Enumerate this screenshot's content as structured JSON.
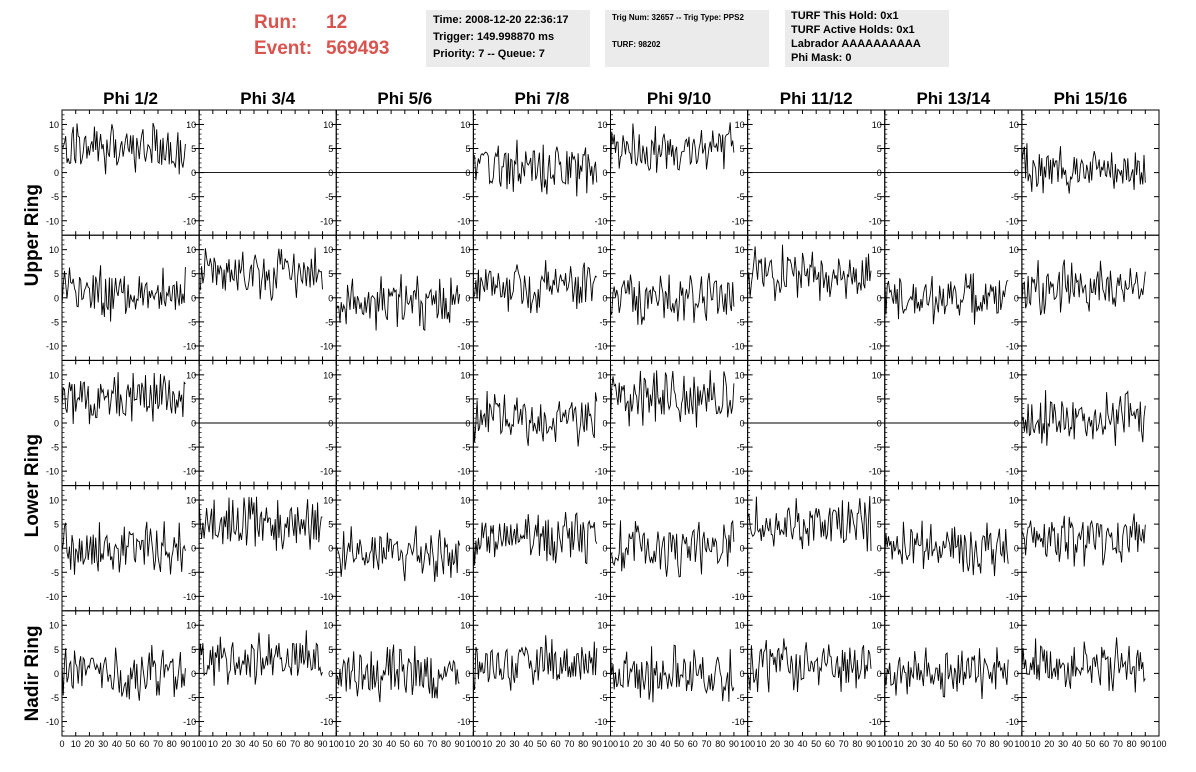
{
  "header": {
    "run_label": "Run:",
    "run_value": "12",
    "event_label": "Event:",
    "event_value": "569493"
  },
  "info_panels": [
    {
      "lines": [
        "Time: 2008-12-20 22:36:17",
        "Trigger: 149.998870 ms",
        "Priority: 7 -- Queue: 7"
      ]
    },
    {
      "lines": [
        "Trig Num: 32657 -- Trig Type: PPS2",
        "TURF: 98202"
      ]
    },
    {
      "lines": [
        "TURF This Hold: 0x1",
        "TURF Active Holds: 0x1",
        "Labrador AAAAAAAAAA",
        "Phi Mask: 0"
      ]
    }
  ],
  "colors": {
    "run_text": "#d9534f",
    "panel_bg": "#ebebeb",
    "trace": "#000000",
    "frame": "#000000"
  },
  "chart_data": {
    "type": "line",
    "grid": false,
    "columns": [
      "Phi 1/2",
      "Phi 3/4",
      "Phi 5/6",
      "Phi 7/8",
      "Phi 9/10",
      "Phi 11/12",
      "Phi 13/14",
      "Phi 15/16"
    ],
    "rows": [
      "Upper Ring",
      "Lower Ring",
      "Nadir Ring"
    ],
    "xlim": [
      0,
      100
    ],
    "ylim": [
      -13,
      13
    ],
    "x_ticks": [
      "0",
      "10",
      "20",
      "30",
      "40",
      "50",
      "60",
      "70",
      "80",
      "90",
      "100"
    ],
    "y_ticks": [
      "10",
      "5",
      "0",
      "-5",
      "-10"
    ],
    "upper_ring_flat_columns": [
      1,
      2,
      5,
      6
    ],
    "lower_ring_flat_columns": [
      1,
      2,
      5,
      6
    ],
    "approx_baselines": [
      [
        5,
        0,
        0,
        1,
        5,
        0,
        0,
        1
      ],
      [
        1,
        5,
        -1,
        2,
        0,
        5,
        0,
        2
      ],
      [
        5,
        0,
        0,
        1,
        5,
        0,
        0,
        1
      ],
      [
        0,
        5,
        -1,
        2,
        0,
        5,
        0,
        2
      ],
      [
        0,
        3,
        0,
        2,
        0,
        2,
        0,
        2
      ]
    ],
    "samples_per_trace": 100
  }
}
